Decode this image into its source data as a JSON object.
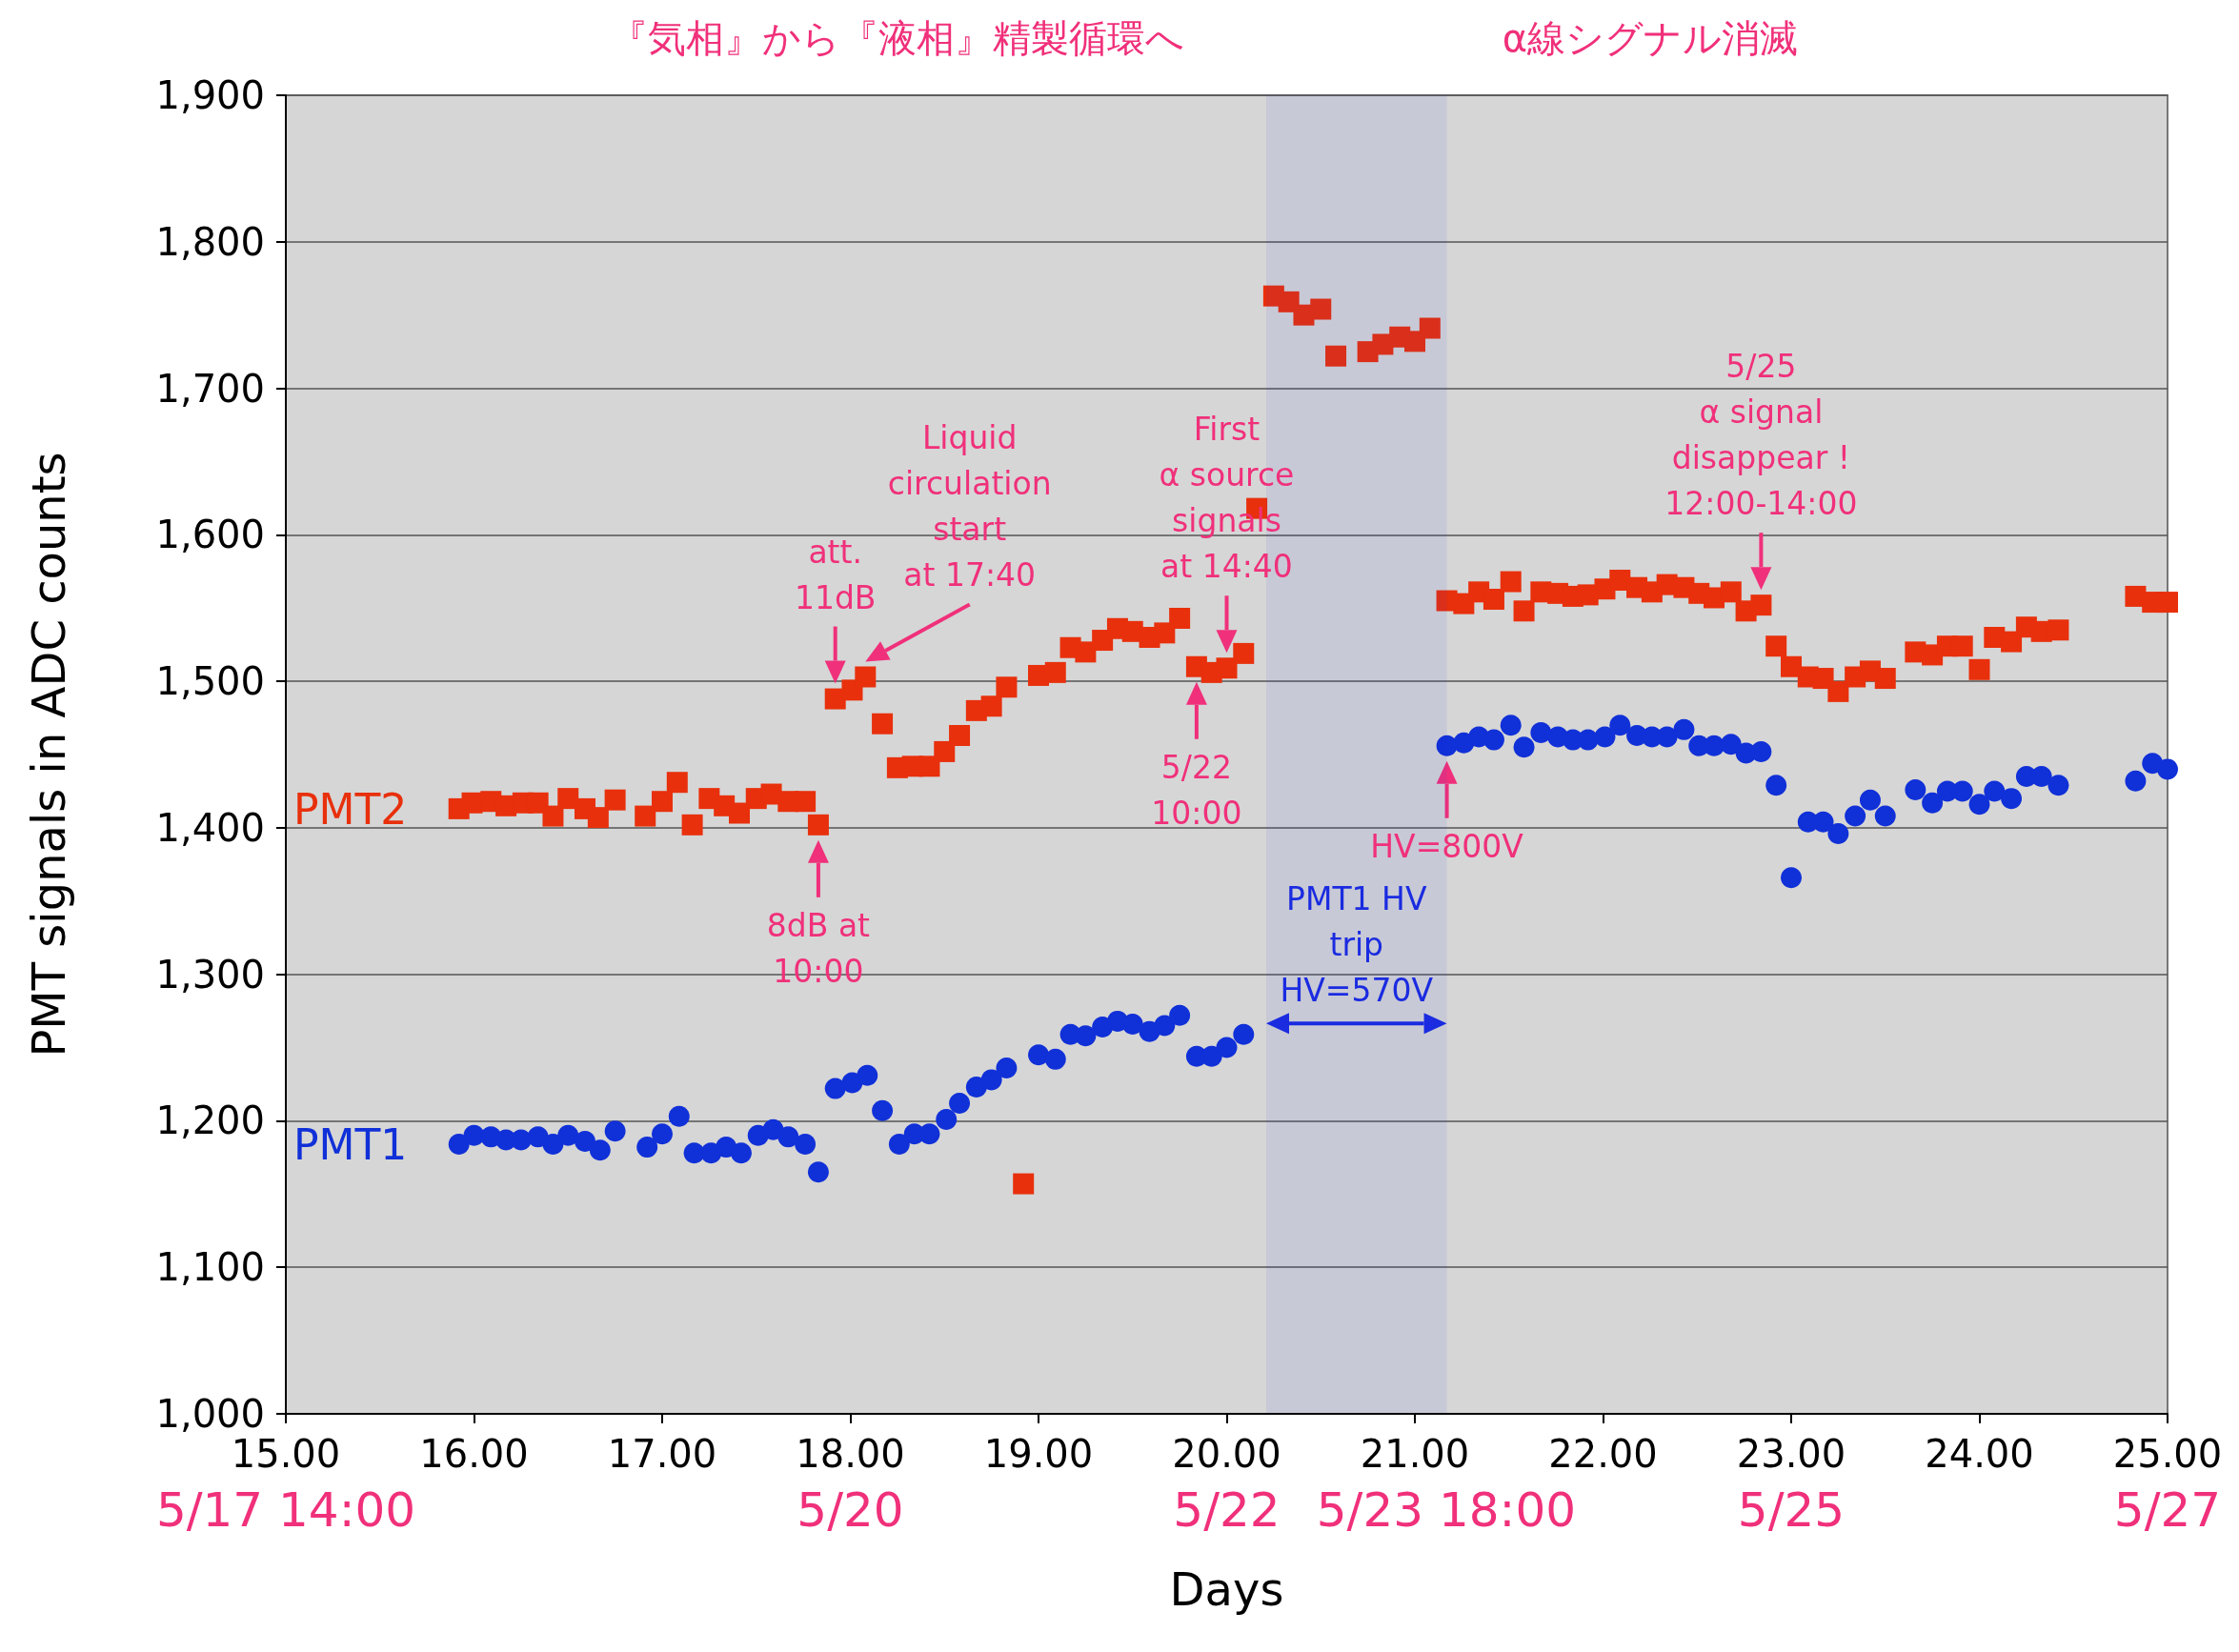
{
  "chart_data": {
    "type": "scatter",
    "xlabel": "Days",
    "ylabel": "PMT signals in ADC counts",
    "xlim": [
      15,
      25
    ],
    "xticks": [
      {
        "value": 15,
        "label": "15.00"
      },
      {
        "value": 16,
        "label": "16.00"
      },
      {
        "value": 17,
        "label": "17.00"
      },
      {
        "value": 18,
        "label": "18.00"
      },
      {
        "value": 19,
        "label": "19.00"
      },
      {
        "value": 20,
        "label": "20.00"
      },
      {
        "value": 21,
        "label": "21.00"
      },
      {
        "value": 22,
        "label": "22.00"
      },
      {
        "value": 23,
        "label": "23.00"
      },
      {
        "value": 24,
        "label": "24.00"
      },
      {
        "value": 25,
        "label": "25.00"
      }
    ],
    "x2lim": [
      "--05-17T14:00",
      "--05-27T14:00"
    ],
    "x2ticks": [
      {
        "value": "--05-17T14:00",
        "label": "5/17 14:00"
      },
      {
        "value": "--05-20T14:00",
        "label": "5/20"
      },
      {
        "value": "--05-22T14:00",
        "label": "5/22"
      },
      {
        "value": "--05-23T18:00",
        "label": "5/23 18:00"
      },
      {
        "value": "--05-25T14:00",
        "label": "5/25"
      },
      {
        "value": "--05-27T14:00",
        "label": "5/27"
      }
    ],
    "ylim": [
      1000,
      1900
    ],
    "yticks": [
      {
        "value": 1000,
        "label": "1,000"
      },
      {
        "value": 1100,
        "label": "1,100"
      },
      {
        "value": 1200,
        "label": "1,200"
      },
      {
        "value": 1300,
        "label": "1,300"
      },
      {
        "value": 1400,
        "label": "1,400"
      },
      {
        "value": 1500,
        "label": "1,500"
      },
      {
        "value": 1600,
        "label": "1,600"
      },
      {
        "value": 1700,
        "label": "1,700"
      },
      {
        "value": 1800,
        "label": "1,800"
      },
      {
        "value": 1900,
        "label": "1,900"
      }
    ],
    "grid": "y",
    "series": [
      {
        "name": "PMT2",
        "color": "#e8300c",
        "marker": "square",
        "x": [
          15.92,
          15.99,
          16.09,
          16.17,
          16.26,
          16.34,
          16.42,
          16.5,
          16.59,
          16.66,
          16.75,
          16.91,
          17.0,
          17.08,
          17.16,
          17.25,
          17.33,
          17.41,
          17.5,
          17.58,
          17.67,
          17.76,
          17.83,
          17.92,
          18.01,
          18.08,
          18.17,
          18.25,
          18.33,
          18.42,
          18.5,
          18.58,
          18.67,
          18.75,
          18.83,
          18.92,
          19.0,
          19.09,
          19.17,
          19.25,
          19.34,
          19.42,
          19.5,
          19.59,
          19.67,
          19.75,
          19.84,
          19.92,
          20.0,
          20.09,
          20.16,
          20.25,
          20.33,
          20.41,
          20.5,
          20.58,
          20.75,
          20.83,
          20.92,
          21.0,
          21.08,
          21.17,
          21.26,
          21.34,
          21.42,
          21.51,
          21.58,
          21.67,
          21.76,
          21.84,
          21.92,
          22.01,
          22.09,
          22.18,
          22.26,
          22.34,
          22.43,
          22.51,
          22.59,
          22.68,
          22.76,
          22.84,
          22.92,
          23.0,
          23.09,
          23.17,
          23.25,
          23.34,
          23.42,
          23.5,
          23.66,
          23.75,
          23.83,
          23.91,
          24.0,
          24.08,
          24.17,
          24.25,
          24.33,
          24.42,
          24.83,
          24.92,
          25.0
        ],
        "values": [
          1413,
          1417,
          1418,
          1415,
          1417,
          1417,
          1408,
          1420,
          1413,
          1407,
          1419,
          1408,
          1418,
          1431,
          1402,
          1420,
          1415,
          1410,
          1420,
          1423,
          1418,
          1418,
          1402,
          1488,
          1494,
          1503,
          1471,
          1441,
          1442,
          1442,
          1452,
          1463,
          1480,
          1483,
          1496,
          1157,
          1504,
          1506,
          1523,
          1520,
          1528,
          1536,
          1534,
          1530,
          1533,
          1543,
          1510,
          1506,
          1509,
          1519,
          1618,
          1763,
          1759,
          1750,
          1754,
          1722,
          1725,
          1730,
          1735,
          1732,
          1741,
          1555,
          1553,
          1561,
          1556,
          1568,
          1548,
          1561,
          1560,
          1558,
          1559,
          1563,
          1569,
          1564,
          1561,
          1566,
          1564,
          1560,
          1557,
          1561,
          1548,
          1552,
          1524,
          1510,
          1503,
          1502,
          1493,
          1503,
          1507,
          1502,
          1520,
          1518,
          1524,
          1524,
          1508,
          1530,
          1527,
          1537,
          1534,
          1535,
          1558,
          1554,
          1554
        ]
      },
      {
        "name": "PMT1",
        "color": "#1030d8",
        "marker": "circle",
        "x": [
          15.92,
          16.0,
          16.09,
          16.17,
          16.25,
          16.34,
          16.42,
          16.5,
          16.59,
          16.67,
          16.75,
          16.92,
          17.0,
          17.09,
          17.17,
          17.26,
          17.34,
          17.42,
          17.51,
          17.59,
          17.67,
          17.76,
          17.83,
          17.92,
          18.01,
          18.09,
          18.17,
          18.26,
          18.34,
          18.42,
          18.51,
          18.58,
          18.67,
          18.75,
          18.83,
          19.0,
          19.09,
          19.17,
          19.25,
          19.34,
          19.42,
          19.5,
          19.59,
          19.67,
          19.75,
          19.84,
          19.92,
          20.0,
          20.09,
          21.17,
          21.26,
          21.34,
          21.42,
          21.51,
          21.58,
          21.67,
          21.76,
          21.84,
          21.92,
          22.01,
          22.09,
          22.18,
          22.26,
          22.34,
          22.43,
          22.51,
          22.59,
          22.68,
          22.76,
          22.84,
          22.92,
          23.0,
          23.09,
          23.17,
          23.25,
          23.34,
          23.42,
          23.5,
          23.66,
          23.75,
          23.83,
          23.91,
          24.0,
          24.08,
          24.17,
          24.25,
          24.33,
          24.42,
          24.83,
          24.92,
          25.0
        ],
        "values": [
          1184,
          1190,
          1189,
          1187,
          1187,
          1189,
          1184,
          1190,
          1186,
          1180,
          1193,
          1182,
          1191,
          1203,
          1178,
          1178,
          1182,
          1178,
          1190,
          1194,
          1189,
          1184,
          1165,
          1222,
          1226,
          1231,
          1207,
          1184,
          1191,
          1191,
          1201,
          1212,
          1223,
          1228,
          1236,
          1245,
          1242,
          1259,
          1258,
          1264,
          1268,
          1266,
          1261,
          1265,
          1272,
          1244,
          1244,
          1250,
          1259,
          1456,
          1458,
          1462,
          1460,
          1470,
          1455,
          1465,
          1462,
          1460,
          1460,
          1462,
          1470,
          1463,
          1462,
          1462,
          1467,
          1456,
          1456,
          1457,
          1451,
          1452,
          1429,
          1366,
          1404,
          1404,
          1396,
          1408,
          1419,
          1408,
          1426,
          1417,
          1425,
          1425,
          1416,
          1425,
          1420,
          1435,
          1435,
          1429,
          1432,
          1444,
          1440
        ]
      }
    ],
    "bands": [
      {
        "axis": "x",
        "from": 20.21,
        "to": 21.17,
        "label": "PMT1 HV\ntrip\nHV=570V",
        "color": "#1a2be0"
      }
    ],
    "annotations": [
      "『気相』から『液相』精製循環へ",
      "α線シグナル消滅",
      {
        "text": "att.\n11dB",
        "x": 17.92,
        "y": 1488
      },
      {
        "text": "Liquid\ncirculation\nstart\nat 17:40",
        "x": 18.08,
        "y": 1503
      },
      {
        "text": "8dB at\n10:00",
        "x": 17.83,
        "y": 1402
      },
      {
        "text": "First\nα source\nsignals\nat 14:40",
        "x": 20.0,
        "y": 1509
      },
      {
        "text": "5/22\n10:00",
        "x": 19.84,
        "y": 1510
      },
      {
        "text": "5/25\nα signal\ndisappear !\n12:00-14:00",
        "x": 22.84,
        "y": 1552
      },
      {
        "text": "HV=800V",
        "x": 21.17,
        "y": 1456
      }
    ]
  }
}
